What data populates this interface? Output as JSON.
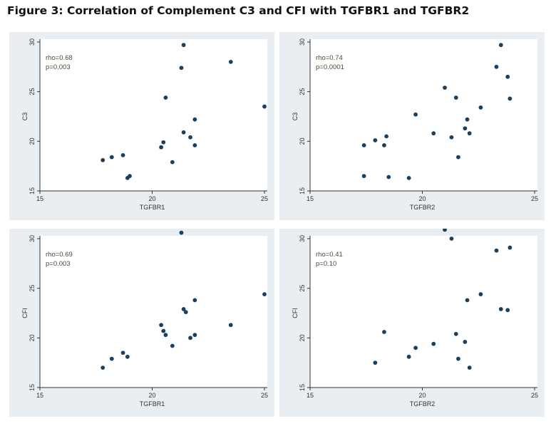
{
  "figure_title": "Figure 3: Correlation of Complement C3 and CFI with TGFBR1 and TGFBR2",
  "colors": {
    "panel_bg": "#e9eef2",
    "point": "#1a3f5f",
    "axis": "#333333"
  },
  "chart_data": [
    {
      "type": "scatter",
      "xlabel": "TGFBR1",
      "ylabel": "C3",
      "xlim": [
        15,
        25
      ],
      "ylim": [
        15,
        30
      ],
      "xticks": [
        15,
        20,
        25
      ],
      "yticks": [
        15,
        20,
        25,
        30
      ],
      "stats": [
        "rho=0.68",
        "p=0.003"
      ],
      "points": [
        {
          "x": 17.8,
          "y": 18.1
        },
        {
          "x": 18.2,
          "y": 18.4
        },
        {
          "x": 18.7,
          "y": 18.6
        },
        {
          "x": 18.9,
          "y": 16.3
        },
        {
          "x": 19.0,
          "y": 16.5
        },
        {
          "x": 20.4,
          "y": 19.4
        },
        {
          "x": 20.5,
          "y": 19.9
        },
        {
          "x": 20.6,
          "y": 24.4
        },
        {
          "x": 20.9,
          "y": 17.9
        },
        {
          "x": 21.3,
          "y": 27.4
        },
        {
          "x": 21.4,
          "y": 29.7
        },
        {
          "x": 21.4,
          "y": 20.9
        },
        {
          "x": 21.7,
          "y": 20.4
        },
        {
          "x": 21.9,
          "y": 19.6
        },
        {
          "x": 21.9,
          "y": 22.2
        },
        {
          "x": 23.5,
          "y": 28.0
        },
        {
          "x": 25.0,
          "y": 23.5
        }
      ]
    },
    {
      "type": "scatter",
      "xlabel": "TGFBR2",
      "ylabel": "C3",
      "xlim": [
        15,
        25
      ],
      "ylim": [
        15,
        30
      ],
      "xticks": [
        15,
        20,
        25
      ],
      "yticks": [
        15,
        20,
        25,
        30
      ],
      "stats": [
        "rho=0.74",
        "p=0.0001"
      ],
      "points": [
        {
          "x": 17.4,
          "y": 16.5
        },
        {
          "x": 17.4,
          "y": 19.6
        },
        {
          "x": 17.9,
          "y": 20.1
        },
        {
          "x": 18.3,
          "y": 19.6
        },
        {
          "x": 18.4,
          "y": 20.5
        },
        {
          "x": 18.5,
          "y": 16.4
        },
        {
          "x": 19.4,
          "y": 16.3
        },
        {
          "x": 19.7,
          "y": 22.7
        },
        {
          "x": 20.5,
          "y": 20.8
        },
        {
          "x": 21.0,
          "y": 25.4
        },
        {
          "x": 21.3,
          "y": 20.4
        },
        {
          "x": 21.5,
          "y": 24.4
        },
        {
          "x": 21.6,
          "y": 18.4
        },
        {
          "x": 21.9,
          "y": 21.3
        },
        {
          "x": 22.0,
          "y": 22.2
        },
        {
          "x": 22.1,
          "y": 20.8
        },
        {
          "x": 22.6,
          "y": 23.4
        },
        {
          "x": 23.3,
          "y": 27.5
        },
        {
          "x": 23.5,
          "y": 29.7
        },
        {
          "x": 23.8,
          "y": 26.5
        },
        {
          "x": 23.9,
          "y": 24.3
        }
      ]
    },
    {
      "type": "scatter",
      "xlabel": "TGFBR1",
      "ylabel": "CFI",
      "xlim": [
        15,
        25
      ],
      "ylim": [
        15,
        30
      ],
      "xticks": [
        15,
        20,
        25
      ],
      "yticks": [
        15,
        20,
        25,
        30
      ],
      "stats": [
        "rho=0.69",
        "p=0.003"
      ],
      "points": [
        {
          "x": 17.8,
          "y": 17.0
        },
        {
          "x": 18.2,
          "y": 17.9
        },
        {
          "x": 18.7,
          "y": 18.5
        },
        {
          "x": 18.9,
          "y": 18.1
        },
        {
          "x": 20.4,
          "y": 21.3
        },
        {
          "x": 20.5,
          "y": 20.7
        },
        {
          "x": 20.6,
          "y": 20.3
        },
        {
          "x": 20.9,
          "y": 19.2
        },
        {
          "x": 21.3,
          "y": 30.6
        },
        {
          "x": 21.4,
          "y": 22.9
        },
        {
          "x": 21.5,
          "y": 22.6
        },
        {
          "x": 21.7,
          "y": 20.0
        },
        {
          "x": 21.9,
          "y": 23.8
        },
        {
          "x": 21.9,
          "y": 20.3
        },
        {
          "x": 23.5,
          "y": 21.3
        },
        {
          "x": 25.0,
          "y": 24.4
        }
      ]
    },
    {
      "type": "scatter",
      "xlabel": "TGFBR2",
      "ylabel": "CFI",
      "xlim": [
        15,
        25
      ],
      "ylim": [
        15,
        30
      ],
      "xticks": [
        15,
        20,
        25
      ],
      "yticks": [
        15,
        20,
        25,
        30
      ],
      "stats": [
        "rho=0.41",
        "p=0.10"
      ],
      "points": [
        {
          "x": 17.9,
          "y": 17.5
        },
        {
          "x": 18.3,
          "y": 20.6
        },
        {
          "x": 19.4,
          "y": 18.1
        },
        {
          "x": 19.7,
          "y": 19.0
        },
        {
          "x": 20.5,
          "y": 19.4
        },
        {
          "x": 21.0,
          "y": 30.9
        },
        {
          "x": 21.3,
          "y": 30.0
        },
        {
          "x": 21.5,
          "y": 20.4
        },
        {
          "x": 21.6,
          "y": 17.9
        },
        {
          "x": 21.9,
          "y": 19.6
        },
        {
          "x": 22.0,
          "y": 23.8
        },
        {
          "x": 22.1,
          "y": 17.0
        },
        {
          "x": 22.6,
          "y": 24.4
        },
        {
          "x": 23.3,
          "y": 28.8
        },
        {
          "x": 23.5,
          "y": 22.9
        },
        {
          "x": 23.8,
          "y": 22.8
        },
        {
          "x": 23.9,
          "y": 29.1
        }
      ]
    }
  ]
}
